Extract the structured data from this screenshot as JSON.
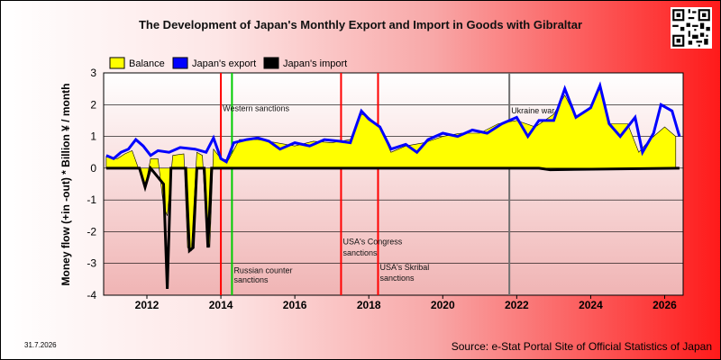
{
  "chart_data": {
    "type": "area",
    "title": "The Development of Japan's Monthly Export and Import in Goods with Gibraltar",
    "ylabel": "Money flow (+in -out) * Billion ¥ / month",
    "xlabel": "",
    "ylim": [
      -4,
      3
    ],
    "xlim": [
      2010.83,
      2026.5
    ],
    "y_ticks": [
      3,
      2,
      1,
      0,
      -1,
      -2,
      -3,
      -4
    ],
    "x_ticks": [
      2012,
      2014,
      2016,
      2018,
      2020,
      2022,
      2024,
      2026
    ],
    "grid": true,
    "legend": {
      "placement": "top-left"
    },
    "series": [
      {
        "name": "Balance",
        "color": "#ffff00",
        "points": [
          [
            2010.9,
            0.35
          ],
          [
            2011.2,
            0.3
          ],
          [
            2011.4,
            0.45
          ],
          [
            2011.6,
            0.55
          ],
          [
            2011.8,
            -0.1
          ],
          [
            2011.95,
            -0.6
          ],
          [
            2012.1,
            0.3
          ],
          [
            2012.3,
            0.3
          ],
          [
            2012.45,
            -1.2
          ],
          [
            2012.55,
            -1.5
          ],
          [
            2012.7,
            0.4
          ],
          [
            2013.0,
            0.45
          ],
          [
            2013.1,
            -2.5
          ],
          [
            2013.2,
            -2.6
          ],
          [
            2013.35,
            0.5
          ],
          [
            2013.5,
            0.4
          ],
          [
            2013.6,
            -1.8
          ],
          [
            2013.7,
            -2.5
          ],
          [
            2013.8,
            0.6
          ],
          [
            2014.0,
            0.3
          ],
          [
            2014.2,
            0.25
          ],
          [
            2014.5,
            0.9
          ],
          [
            2015.0,
            0.9
          ],
          [
            2015.5,
            0.8
          ],
          [
            2016.0,
            0.7
          ],
          [
            2016.5,
            0.85
          ],
          [
            2017.0,
            0.8
          ],
          [
            2017.5,
            0.9
          ],
          [
            2017.8,
            1.7
          ],
          [
            2018.0,
            1.6
          ],
          [
            2018.3,
            1.3
          ],
          [
            2018.6,
            0.5
          ],
          [
            2019.0,
            0.7
          ],
          [
            2019.5,
            0.8
          ],
          [
            2020.0,
            1.0
          ],
          [
            2020.5,
            1.1
          ],
          [
            2021.0,
            1.1
          ],
          [
            2021.5,
            1.4
          ],
          [
            2022.0,
            1.5
          ],
          [
            2022.5,
            1.3
          ],
          [
            2023.0,
            1.7
          ],
          [
            2023.3,
            2.3
          ],
          [
            2023.6,
            1.6
          ],
          [
            2024.0,
            1.9
          ],
          [
            2024.25,
            2.6
          ],
          [
            2024.5,
            1.4
          ],
          [
            2025.0,
            1.4
          ],
          [
            2025.3,
            0.5
          ],
          [
            2025.6,
            0.9
          ],
          [
            2026.0,
            1.3
          ],
          [
            2026.3,
            1.0
          ]
        ]
      },
      {
        "name": "Japan's export",
        "color": "#0000ff",
        "points": [
          [
            2010.9,
            0.4
          ],
          [
            2011.1,
            0.3
          ],
          [
            2011.3,
            0.5
          ],
          [
            2011.5,
            0.6
          ],
          [
            2011.7,
            0.9
          ],
          [
            2011.9,
            0.7
          ],
          [
            2012.1,
            0.4
          ],
          [
            2012.3,
            0.55
          ],
          [
            2012.6,
            0.5
          ],
          [
            2012.9,
            0.65
          ],
          [
            2013.3,
            0.6
          ],
          [
            2013.6,
            0.5
          ],
          [
            2013.8,
            0.95
          ],
          [
            2014.0,
            0.3
          ],
          [
            2014.15,
            0.2
          ],
          [
            2014.35,
            0.8
          ],
          [
            2014.7,
            0.9
          ],
          [
            2015.0,
            0.95
          ],
          [
            2015.3,
            0.85
          ],
          [
            2015.6,
            0.6
          ],
          [
            2016.0,
            0.8
          ],
          [
            2016.4,
            0.7
          ],
          [
            2016.8,
            0.9
          ],
          [
            2017.2,
            0.85
          ],
          [
            2017.5,
            0.8
          ],
          [
            2017.8,
            1.8
          ],
          [
            2018.0,
            1.55
          ],
          [
            2018.3,
            1.3
          ],
          [
            2018.6,
            0.6
          ],
          [
            2019.0,
            0.75
          ],
          [
            2019.3,
            0.5
          ],
          [
            2019.6,
            0.9
          ],
          [
            2020.0,
            1.1
          ],
          [
            2020.4,
            1.0
          ],
          [
            2020.8,
            1.2
          ],
          [
            2021.2,
            1.1
          ],
          [
            2021.6,
            1.4
          ],
          [
            2022.0,
            1.6
          ],
          [
            2022.3,
            1.0
          ],
          [
            2022.6,
            1.5
          ],
          [
            2023.0,
            1.5
          ],
          [
            2023.3,
            2.5
          ],
          [
            2023.6,
            1.6
          ],
          [
            2024.0,
            1.9
          ],
          [
            2024.25,
            2.6
          ],
          [
            2024.5,
            1.4
          ],
          [
            2024.8,
            1.0
          ],
          [
            2025.2,
            1.6
          ],
          [
            2025.4,
            0.5
          ],
          [
            2025.7,
            1.1
          ],
          [
            2025.9,
            2.0
          ],
          [
            2026.2,
            1.8
          ],
          [
            2026.4,
            1.0
          ]
        ]
      },
      {
        "name": "Japan's import",
        "color": "#000000",
        "points": [
          [
            2010.9,
            0.0
          ],
          [
            2011.8,
            0.0
          ],
          [
            2011.95,
            -0.6
          ],
          [
            2012.1,
            0.0
          ],
          [
            2012.45,
            -0.5
          ],
          [
            2012.55,
            -3.8
          ],
          [
            2012.65,
            0.0
          ],
          [
            2013.05,
            0.0
          ],
          [
            2013.15,
            -2.6
          ],
          [
            2013.25,
            -2.5
          ],
          [
            2013.35,
            0.0
          ],
          [
            2013.55,
            0.0
          ],
          [
            2013.65,
            -2.5
          ],
          [
            2013.75,
            0.0
          ],
          [
            2022.6,
            0.0
          ],
          [
            2022.9,
            -0.05
          ],
          [
            2026.4,
            0.0
          ]
        ]
      }
    ],
    "vertical_lines": [
      {
        "x": 2014.0,
        "color": "#ff0000"
      },
      {
        "x": 2014.3,
        "color": "#00cc00"
      },
      {
        "x": 2017.25,
        "color": "#ff0000"
      },
      {
        "x": 2018.25,
        "color": "#ff0000"
      },
      {
        "x": 2021.8,
        "color": "#707070"
      }
    ],
    "annotations": [
      {
        "text": "Western sanctions",
        "x": 2014.05,
        "y": 1.8
      },
      {
        "text": "Russian counter",
        "x": 2014.35,
        "y": -3.3
      },
      {
        "text": "sanctions",
        "x": 2014.35,
        "y": -3.6
      },
      {
        "text": "USA's Congress",
        "x": 2017.3,
        "y": -2.4
      },
      {
        "text": "sanctions",
        "x": 2017.3,
        "y": -2.75
      },
      {
        "text": "USA's Skribal",
        "x": 2018.3,
        "y": -3.2
      },
      {
        "text": "sanctions",
        "x": 2018.3,
        "y": -3.55
      },
      {
        "text": "Ukraine war",
        "x": 2021.85,
        "y": 1.72
      }
    ]
  },
  "footer": {
    "date": "31.7.2026",
    "source": "Source: e-Stat Portal Site of Official Statistics of Japan"
  },
  "qr_icon": "qr-code-icon"
}
